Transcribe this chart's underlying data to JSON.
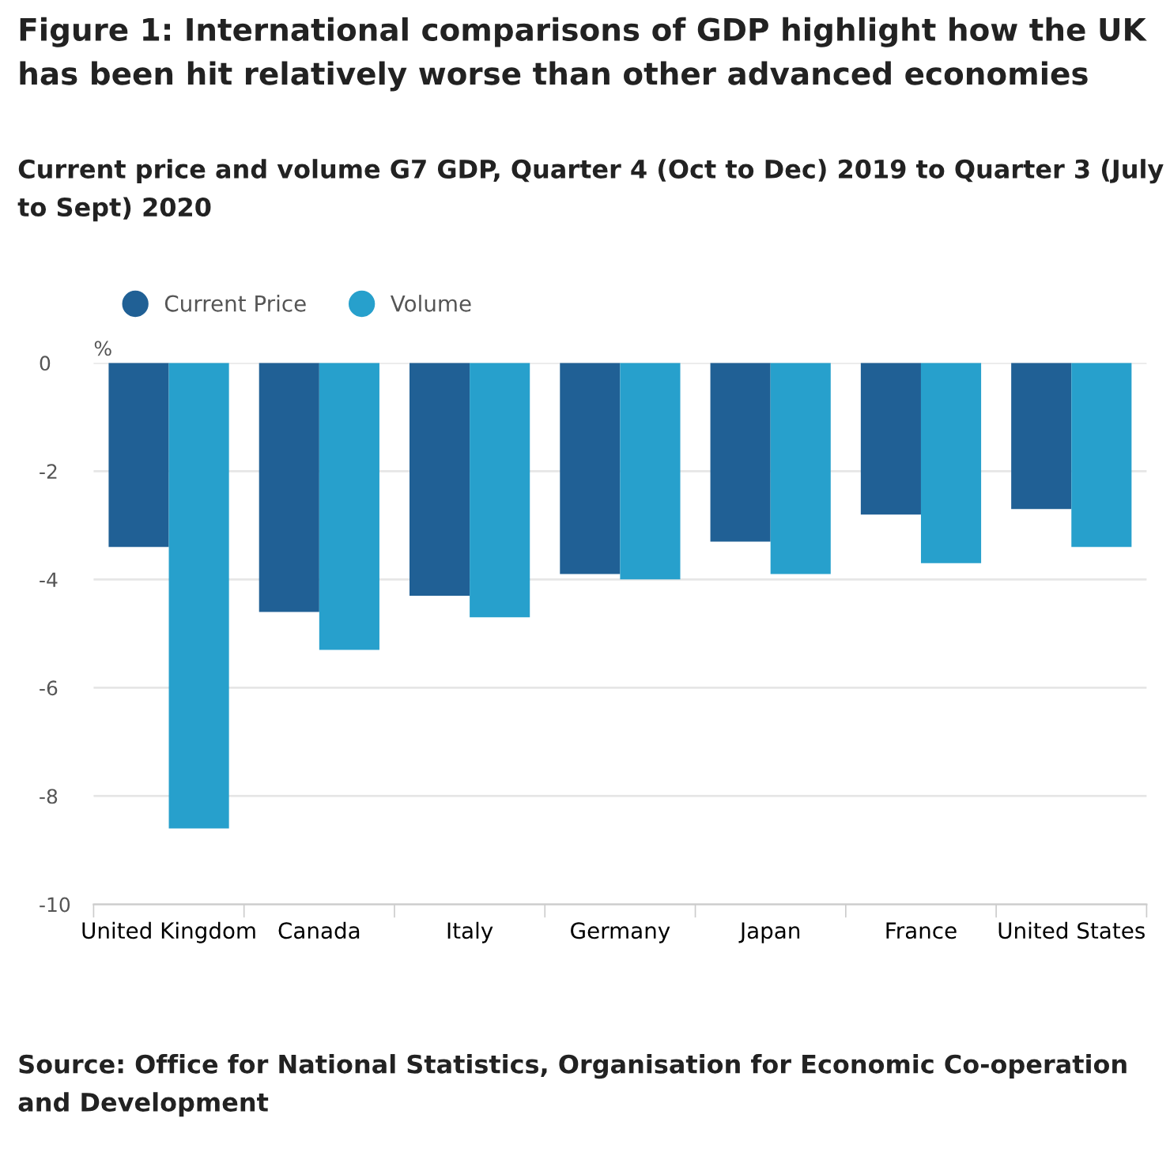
{
  "chart_data": {
    "type": "bar",
    "title": "Figure 1: International comparisons of GDP highlight how the UK has been hit relatively worse than other advanced economies",
    "subtitle": "Current price and volume G7 GDP, Quarter 4 (Oct to Dec) 2019 to Quarter 3 (July to Sept) 2020",
    "ylabel": "%",
    "categories": [
      "United Kingdom",
      "Canada",
      "Italy",
      "Germany",
      "Japan",
      "France",
      "United States"
    ],
    "series": [
      {
        "name": "Current Price",
        "color": "#206095",
        "values": [
          -3.4,
          -4.6,
          -4.3,
          -3.9,
          -3.3,
          -2.8,
          -2.7
        ]
      },
      {
        "name": "Volume",
        "color": "#27a0cc",
        "values": [
          -8.6,
          -5.3,
          -4.7,
          -4.0,
          -3.9,
          -3.7,
          -3.4
        ]
      }
    ],
    "ylim": [
      -10,
      0
    ],
    "yticks": [
      0,
      -2,
      -4,
      -6,
      -8,
      -10
    ],
    "grid": "y",
    "legend": "top left",
    "annotations": [
      "Source: Office for National Statistics, Organisation for Economic Co-operation and Development"
    ]
  }
}
